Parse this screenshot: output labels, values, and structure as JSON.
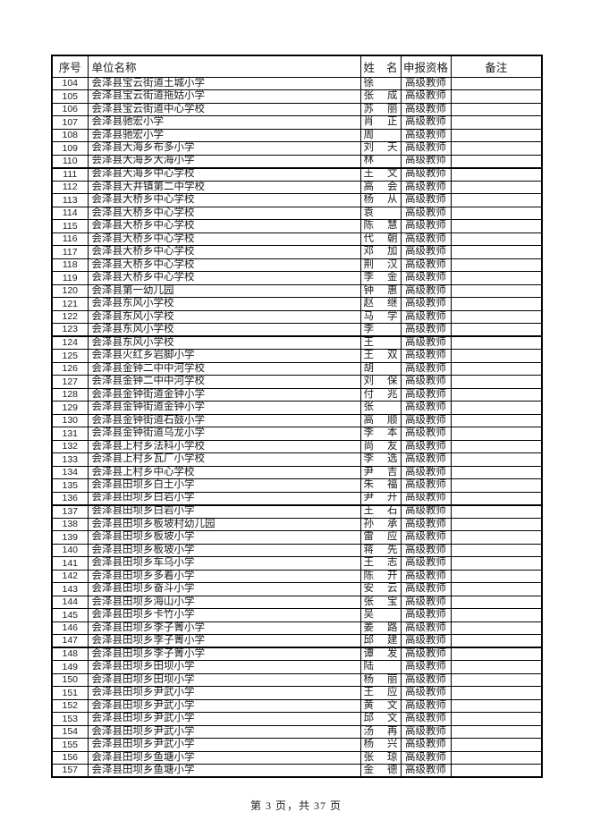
{
  "table": {
    "headers": {
      "seq": "序号",
      "unit": "单位名称",
      "name_left": "姓",
      "name_right": "名",
      "qual": "申报资格",
      "note": "备注"
    },
    "thick_top_seqs": [
      "111",
      "124",
      "137",
      "148"
    ],
    "rows": [
      [
        "104",
        "会泽县宝云街道土城小学",
        "徐",
        "高级教师"
      ],
      [
        "105",
        "会泽县宝云街道拖姑小学",
        "张 成",
        "高级教师"
      ],
      [
        "106",
        "会泽县宝云街道中心学校",
        "苏 丽",
        "高级教师"
      ],
      [
        "107",
        "会泽县驰宏小学",
        "肖 正",
        "高级教师"
      ],
      [
        "108",
        "会泽县驰宏小学",
        "周",
        "高级教师"
      ],
      [
        "109",
        "会泽县大海乡布多小学",
        "刘 天",
        "高级教师"
      ],
      [
        "110",
        "会泽县大海乡大海小学",
        "林",
        "高级教师"
      ],
      [
        "111",
        "会泽县大海乡中心学校",
        "王 文",
        "高级教师"
      ],
      [
        "112",
        "会泽县大井镇第二中学校",
        "高 会",
        "高级教师"
      ],
      [
        "113",
        "会泽县大桥乡中心学校",
        "杨 从",
        "高级教师"
      ],
      [
        "114",
        "会泽县大桥乡中心学校",
        "袁",
        "高级教师"
      ],
      [
        "115",
        "会泽县大桥乡中心学校",
        "陈 慧",
        "高级教师"
      ],
      [
        "116",
        "会泽县大桥乡中心学校",
        "代 朝",
        "高级教师"
      ],
      [
        "117",
        "会泽县大桥乡中心学校",
        "邓 加",
        "高级教师"
      ],
      [
        "118",
        "会泽县大桥乡中心学校",
        "荆 汉",
        "高级教师"
      ],
      [
        "119",
        "会泽县大桥乡中心学校",
        "李 金",
        "高级教师"
      ],
      [
        "120",
        "会泽县第一幼儿园",
        "钟 惠",
        "高级教师"
      ],
      [
        "121",
        "会泽县东风小学校",
        "赵 继",
        "高级教师"
      ],
      [
        "122",
        "会泽县东风小学校",
        "马 学",
        "高级教师"
      ],
      [
        "123",
        "会泽县东风小学校",
        "李",
        "高级教师"
      ],
      [
        "124",
        "会泽县东风小学校",
        "王",
        "高级教师"
      ],
      [
        "125",
        "会泽县火红乡岩脚小学",
        "王 双",
        "高级教师"
      ],
      [
        "126",
        "会泽县金钟二中中河学校",
        "胡",
        "高级教师"
      ],
      [
        "127",
        "会泽县金钟二中中河学校",
        "刘 保",
        "高级教师"
      ],
      [
        "128",
        "会泽县金钟街道金钟小学",
        "付 兆",
        "高级教师"
      ],
      [
        "129",
        "会泽县金钟街道金钟小学",
        "张",
        "高级教师"
      ],
      [
        "130",
        "会泽县金钟街道石鼓小学",
        "高 顺",
        "高级教师"
      ],
      [
        "131",
        "会泽县金钟街道乌龙小学",
        "李 本",
        "高级教师"
      ],
      [
        "132",
        "会泽县上村乡法科小学校",
        "尚 友",
        "高级教师"
      ],
      [
        "133",
        "会泽县上村乡瓦厂小学校",
        "李 选",
        "高级教师"
      ],
      [
        "134",
        "会泽县上村乡中心学校",
        "尹 吉",
        "高级教师"
      ],
      [
        "135",
        "会泽县田坝乡白土小学",
        "朱 福",
        "高级教师"
      ],
      [
        "136",
        "会泽县田坝乡白岩小学",
        "尹 开",
        "高级教师"
      ],
      [
        "137",
        "会泽县田坝乡白岩小学",
        "王 石",
        "高级教师"
      ],
      [
        "138",
        "会泽县田坝乡板坡村幼儿园",
        "孙 承",
        "高级教师"
      ],
      [
        "139",
        "会泽县田坝乡板坡小学",
        "雷 应",
        "高级教师"
      ],
      [
        "140",
        "会泽县田坝乡板坡小学",
        "蒋 先",
        "高级教师"
      ],
      [
        "141",
        "会泽县田坝乡车乌小学",
        "王 志",
        "高级教师"
      ],
      [
        "142",
        "会泽县田坝乡多着小学",
        "陈 开",
        "高级教师"
      ],
      [
        "143",
        "会泽县田坝乡奋斗小学",
        "安 云",
        "高级教师"
      ],
      [
        "144",
        "会泽县田坝乡海山小学",
        "张 宝",
        "高级教师"
      ],
      [
        "145",
        "会泽县田坝乡卡竹小学",
        "吴",
        "高级教师"
      ],
      [
        "146",
        "会泽县田坝乡李子箐小学",
        "姜 路",
        "高级教师"
      ],
      [
        "147",
        "会泽县田坝乡李子箐小学",
        "邱 建",
        "高级教师"
      ],
      [
        "148",
        "会泽县田坝乡李子箐小学",
        "谭 发",
        "高级教师"
      ],
      [
        "149",
        "会泽县田坝乡田坝小学",
        "陆",
        "高级教师"
      ],
      [
        "150",
        "会泽县田坝乡田坝小学",
        "杨 丽",
        "高级教师"
      ],
      [
        "151",
        "会泽县田坝乡尹武小学",
        "王 应",
        "高级教师"
      ],
      [
        "152",
        "会泽县田坝乡尹武小学",
        "黄 文",
        "高级教师"
      ],
      [
        "153",
        "会泽县田坝乡尹武小学",
        "邱 文",
        "高级教师"
      ],
      [
        "154",
        "会泽县田坝乡尹武小学",
        "汤 再",
        "高级教师"
      ],
      [
        "155",
        "会泽县田坝乡尹武小学",
        "杨 兴",
        "高级教师"
      ],
      [
        "156",
        "会泽县田坝乡鱼塘小学",
        "张 琼",
        "高级教师"
      ],
      [
        "157",
        "会泽县田坝乡鱼塘小学",
        "金 德",
        "高级教师"
      ]
    ]
  },
  "footer": {
    "text": "第 3 页，共 37 页"
  }
}
